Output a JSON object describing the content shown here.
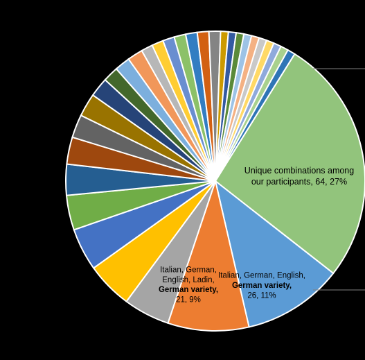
{
  "chart_data": {
    "type": "pie",
    "start_angle_deg": -58,
    "direction": "clockwise",
    "slices": [
      {
        "value": 64,
        "color": "#92c47c",
        "label_lines": [
          "Unique combinations among",
          "our participants, 64, 27%"
        ],
        "label_bold_lines": []
      },
      {
        "value": 26,
        "color": "#5b9bd5",
        "label_lines": [
          "Italian, German, English,",
          "German variety,",
          "26, 11%"
        ],
        "label_bold_lines": [
          1
        ]
      },
      {
        "value": 21,
        "color": "#ed7d31",
        "label_lines": [
          "Italian, German,",
          "English, Ladin,",
          "German variety,",
          "21, 9%"
        ],
        "label_bold_lines": [
          2
        ]
      },
      {
        "value": 12,
        "color": "#a5a5a5"
      },
      {
        "value": 12,
        "color": "#ffc000"
      },
      {
        "value": 11,
        "color": "#4472c4"
      },
      {
        "value": 9,
        "color": "#70ad47"
      },
      {
        "value": 8,
        "color": "#255e91"
      },
      {
        "value": 7,
        "color": "#9e480e"
      },
      {
        "value": 6,
        "color": "#636363"
      },
      {
        "value": 6,
        "color": "#997300"
      },
      {
        "value": 5,
        "color": "#264478"
      },
      {
        "value": 4,
        "color": "#43682b"
      },
      {
        "value": 4,
        "color": "#7cafdd"
      },
      {
        "value": 4,
        "color": "#f1975a"
      },
      {
        "value": 3,
        "color": "#b7b7b7"
      },
      {
        "value": 3,
        "color": "#ffcd33"
      },
      {
        "value": 3,
        "color": "#698ed0"
      },
      {
        "value": 3,
        "color": "#8cc168"
      },
      {
        "value": 3,
        "color": "#327dc2"
      },
      {
        "value": 3,
        "color": "#d26012"
      },
      {
        "value": 3,
        "color": "#848484"
      },
      {
        "value": 2,
        "color": "#cc9a00"
      },
      {
        "value": 2,
        "color": "#335aa1"
      },
      {
        "value": 2,
        "color": "#5a8a39"
      },
      {
        "value": 2,
        "color": "#9dc3e6"
      },
      {
        "value": 2,
        "color": "#f4b183"
      },
      {
        "value": 2,
        "color": "#c9c9c9"
      },
      {
        "value": 2,
        "color": "#ffd966"
      },
      {
        "value": 2,
        "color": "#8faadc"
      },
      {
        "value": 2,
        "color": "#a9d18e"
      },
      {
        "value": 2,
        "color": "#2e75b6"
      }
    ]
  }
}
